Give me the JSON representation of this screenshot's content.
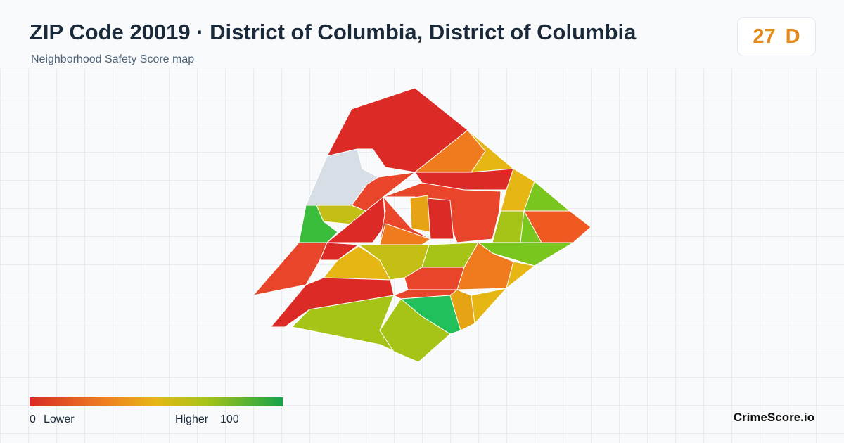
{
  "header": {
    "title": "ZIP Code 20019 · District of Columbia, District of Columbia",
    "subtitle": "Neighborhood Safety Score map"
  },
  "score": {
    "value": 27,
    "grade": "D"
  },
  "legend": {
    "min": 0,
    "min_label": "Lower",
    "max_label": "Higher",
    "max": 100
  },
  "brand": "CrimeScore.io"
}
